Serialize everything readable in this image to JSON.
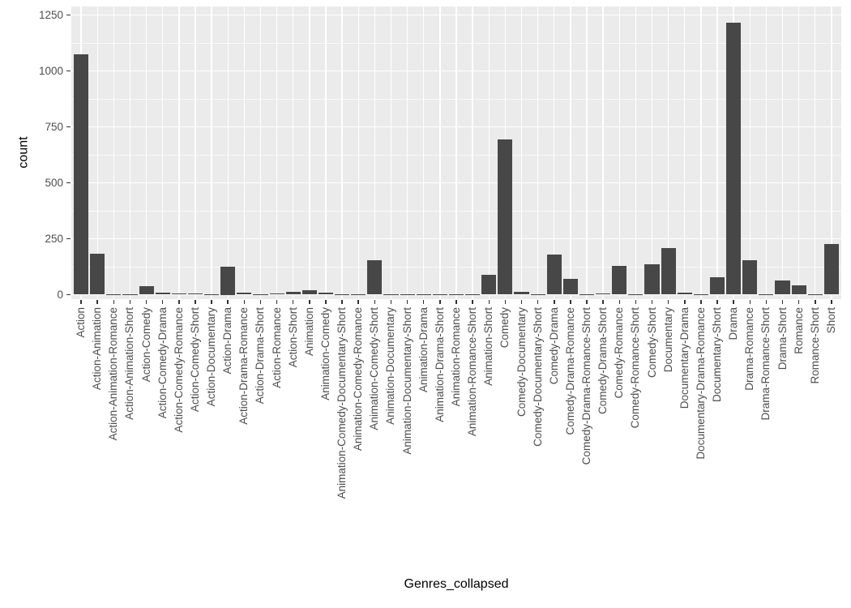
{
  "chart_data": {
    "type": "bar",
    "title": "",
    "xlabel": "Genres_collapsed",
    "ylabel": "count",
    "ylim": [
      0,
      1250
    ],
    "yticks": [
      0,
      250,
      500,
      750,
      1000,
      1250
    ],
    "minor_yticks": [
      125,
      375,
      625,
      875,
      1125
    ],
    "legend": "none",
    "grid": "white major and minor gridlines on gray panel (ggplot2 theme_grey)",
    "panel_bg": "#EBEBEB",
    "bar_color": "#474747",
    "axis_text_color": "#4d4d4d",
    "categories": [
      "Action",
      "Action-Animation",
      "Action-Animation-Romance",
      "Action-Animation-Short",
      "Action-Comedy",
      "Action-Comedy-Drama",
      "Action-Comedy-Romance",
      "Action-Comedy-Short",
      "Action-Documentary",
      "Action-Drama",
      "Action-Drama-Romance",
      "Action-Drama-Short",
      "Action-Romance",
      "Action-Short",
      "Animation",
      "Animation-Comedy",
      "Animation-Comedy-Documentary-Short",
      "Animation-Comedy-Romance",
      "Animation-Comedy-Short",
      "Animation-Documentary",
      "Animation-Documentary-Short",
      "Animation-Drama",
      "Animation-Drama-Short",
      "Animation-Romance",
      "Animation-Romance-Short",
      "Animation-Short",
      "Comedy",
      "Comedy-Documentary",
      "Comedy-Documentary-Short",
      "Comedy-Drama",
      "Comedy-Drama-Romance",
      "Comedy-Drama-Romance-Short",
      "Comedy-Drama-Short",
      "Comedy-Romance",
      "Comedy-Romance-Short",
      "Comedy-Short",
      "Documentary",
      "Documentary-Drama",
      "Documentary-Drama-Romance",
      "Documentary-Short",
      "Drama",
      "Drama-Romance",
      "Drama-Romance-Short",
      "Drama-Short",
      "Romance",
      "Romance-Short",
      "Short"
    ],
    "values": [
      1075,
      183,
      2,
      2,
      38,
      8,
      5,
      5,
      2,
      125,
      8,
      3,
      6,
      12,
      20,
      10,
      2,
      2,
      155,
      2,
      3,
      2,
      3,
      2,
      3,
      90,
      695,
      12,
      3,
      180,
      70,
      2,
      6,
      130,
      3,
      135,
      210,
      10,
      2,
      78,
      1215,
      155,
      3,
      63,
      40,
      3,
      228
    ]
  }
}
